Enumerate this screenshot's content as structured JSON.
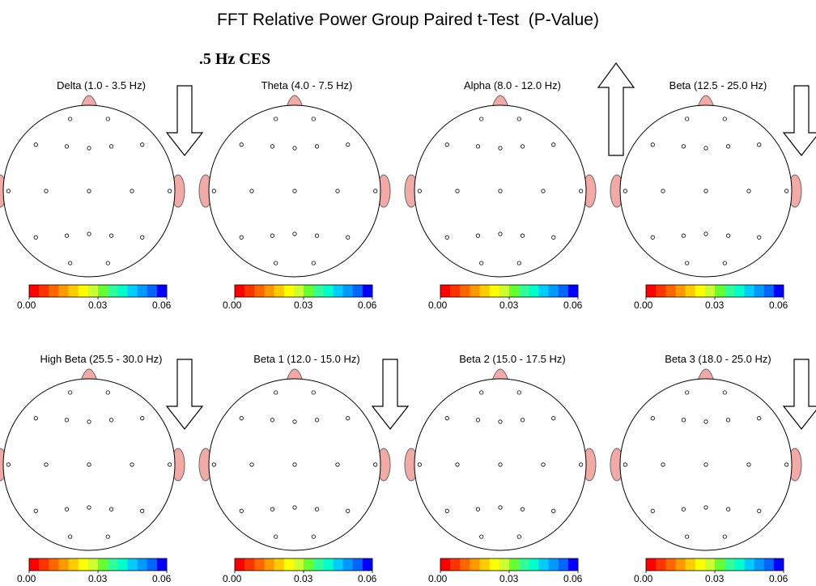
{
  "title": "FFT Relative Power Group Paired t-Test  (P-Value)",
  "subtitle": ".5 Hz CES",
  "colorbar": {
    "ticks": [
      "0.00",
      "0.03",
      "0.06"
    ],
    "colors": [
      "#ff0000",
      "#ff3300",
      "#ff6600",
      "#ff9900",
      "#ffcc00",
      "#ffff00",
      "#ccff33",
      "#66ff33",
      "#33ff99",
      "#00ffcc",
      "#00ccff",
      "#0099ff",
      "#0066ff",
      "#0000ff"
    ]
  },
  "panels": [
    {
      "label": "Delta (1.0 - 3.5 Hz)",
      "arrow": "down"
    },
    {
      "label": "Theta (4.0 - 7.5 Hz)",
      "arrow": "none"
    },
    {
      "label": "Alpha (8.0 - 12.0 Hz)",
      "arrow": "up"
    },
    {
      "label": "Beta (12.5 - 25.0 Hz)",
      "arrow": "down"
    },
    {
      "label": "High Beta (25.5 - 30.0 Hz)",
      "arrow": "down"
    },
    {
      "label": "Beta 1 (12.0 - 15.0 Hz)",
      "arrow": "down"
    },
    {
      "label": "Beta 2 (15.0 - 17.5 Hz)",
      "arrow": "none"
    },
    {
      "label": "Beta 3 (18.0 - 25.0 Hz)",
      "arrow": "down"
    }
  ]
}
